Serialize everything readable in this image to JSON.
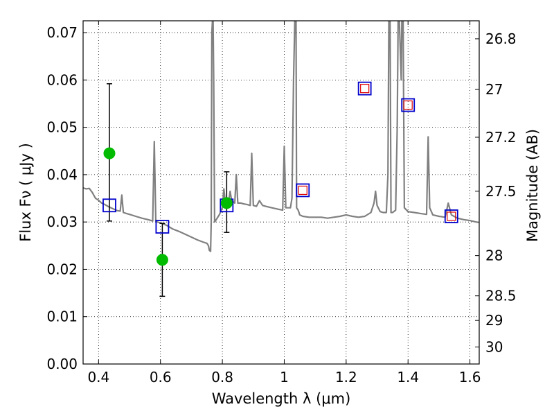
{
  "chart_data": {
    "type": "line",
    "xlabel": "Wavelength  λ (μm)",
    "ylabel": "Flux  Fν  ( μJy )",
    "ylabel_right": "Magnitude (AB)",
    "xlim": [
      0.35,
      1.63
    ],
    "ylim": [
      0.0,
      0.0725
    ],
    "grid": true,
    "grid_style": "dotted",
    "x_ticks": [
      0.4,
      0.6,
      0.8,
      1.0,
      1.2,
      1.4,
      1.6
    ],
    "x_tick_labels": [
      "0.4",
      "0.6",
      "0.8",
      "1",
      "1.2",
      "1.4",
      "1.6"
    ],
    "y_ticks": [
      0.0,
      0.01,
      0.02,
      0.03,
      0.04,
      0.05,
      0.06,
      0.07
    ],
    "y_tick_labels": [
      "0.00",
      "0.01",
      "0.02",
      "0.03",
      "0.04",
      "0.05",
      "0.06",
      "0.07"
    ],
    "y2_ticks": [
      {
        "flux": 0.0687,
        "label": "26.8"
      },
      {
        "flux": 0.058,
        "label": "27"
      },
      {
        "flux": 0.0479,
        "label": "27.2"
      },
      {
        "flux": 0.0365,
        "label": "27.5"
      },
      {
        "flux": 0.0229,
        "label": "28"
      },
      {
        "flux": 0.0144,
        "label": "28.5"
      },
      {
        "flux": 0.0092,
        "label": "29"
      },
      {
        "flux": 0.0036,
        "label": "30"
      }
    ],
    "series": [
      {
        "kind": "spectrum",
        "color": "#808080",
        "points": [
          [
            0.35,
            0.0372
          ],
          [
            0.36,
            0.037
          ],
          [
            0.37,
            0.0371
          ],
          [
            0.38,
            0.0362
          ],
          [
            0.39,
            0.035
          ],
          [
            0.4,
            0.0346
          ],
          [
            0.41,
            0.034
          ],
          [
            0.42,
            0.0337
          ],
          [
            0.43,
            0.0333
          ],
          [
            0.44,
            0.033
          ],
          [
            0.45,
            0.0327
          ],
          [
            0.46,
            0.0324
          ],
          [
            0.47,
            0.0323
          ],
          [
            0.475,
            0.0357
          ],
          [
            0.48,
            0.032
          ],
          [
            0.49,
            0.0318
          ],
          [
            0.5,
            0.0316
          ],
          [
            0.52,
            0.0312
          ],
          [
            0.54,
            0.0308
          ],
          [
            0.56,
            0.0305
          ],
          [
            0.57,
            0.0303
          ],
          [
            0.575,
            0.0302
          ],
          [
            0.58,
            0.047
          ],
          [
            0.585,
            0.0301
          ],
          [
            0.6,
            0.0298
          ],
          [
            0.62,
            0.0293
          ],
          [
            0.64,
            0.0285
          ],
          [
            0.66,
            0.028
          ],
          [
            0.68,
            0.0274
          ],
          [
            0.7,
            0.0268
          ],
          [
            0.72,
            0.0262
          ],
          [
            0.74,
            0.0257
          ],
          [
            0.75,
            0.0255
          ],
          [
            0.755,
            0.025
          ],
          [
            0.758,
            0.024
          ],
          [
            0.762,
            0.0238
          ],
          [
            0.764,
            0.03
          ],
          [
            0.766,
            0.07
          ],
          [
            0.768,
            0.0725
          ],
          [
            0.77,
            0.0725
          ],
          [
            0.772,
            0.06
          ],
          [
            0.775,
            0.03
          ],
          [
            0.78,
            0.0305
          ],
          [
            0.79,
            0.0315
          ],
          [
            0.8,
            0.033
          ],
          [
            0.805,
            0.037
          ],
          [
            0.808,
            0.035
          ],
          [
            0.81,
            0.0345
          ],
          [
            0.82,
            0.034
          ],
          [
            0.825,
            0.0365
          ],
          [
            0.83,
            0.0345
          ],
          [
            0.84,
            0.034
          ],
          [
            0.845,
            0.04
          ],
          [
            0.85,
            0.034
          ],
          [
            0.86,
            0.034
          ],
          [
            0.87,
            0.0338
          ],
          [
            0.88,
            0.0337
          ],
          [
            0.89,
            0.0335
          ],
          [
            0.895,
            0.0445
          ],
          [
            0.9,
            0.0335
          ],
          [
            0.91,
            0.0333
          ],
          [
            0.92,
            0.0345
          ],
          [
            0.93,
            0.0335
          ],
          [
            0.94,
            0.0333
          ],
          [
            0.96,
            0.033
          ],
          [
            0.98,
            0.0327
          ],
          [
            0.995,
            0.0325
          ],
          [
            1.0,
            0.046
          ],
          [
            1.005,
            0.033
          ],
          [
            1.02,
            0.033
          ],
          [
            1.025,
            0.035
          ],
          [
            1.03,
            0.06
          ],
          [
            1.034,
            0.0725
          ],
          [
            1.038,
            0.0725
          ],
          [
            1.04,
            0.033
          ],
          [
            1.045,
            0.0325
          ],
          [
            1.05,
            0.0315
          ],
          [
            1.06,
            0.0312
          ],
          [
            1.08,
            0.031
          ],
          [
            1.1,
            0.031
          ],
          [
            1.12,
            0.031
          ],
          [
            1.14,
            0.0308
          ],
          [
            1.16,
            0.031
          ],
          [
            1.18,
            0.0312
          ],
          [
            1.2,
            0.0315
          ],
          [
            1.22,
            0.0312
          ],
          [
            1.24,
            0.031
          ],
          [
            1.26,
            0.0312
          ],
          [
            1.28,
            0.032
          ],
          [
            1.29,
            0.034
          ],
          [
            1.295,
            0.0365
          ],
          [
            1.3,
            0.0335
          ],
          [
            1.31,
            0.0322
          ],
          [
            1.32,
            0.032
          ],
          [
            1.33,
            0.032
          ],
          [
            1.335,
            0.04
          ],
          [
            1.338,
            0.0725
          ],
          [
            1.342,
            0.0725
          ],
          [
            1.345,
            0.032
          ],
          [
            1.35,
            0.032
          ],
          [
            1.36,
            0.0325
          ],
          [
            1.365,
            0.05
          ],
          [
            1.368,
            0.0725
          ],
          [
            1.372,
            0.0725
          ],
          [
            1.378,
            0.06
          ],
          [
            1.38,
            0.0725
          ],
          [
            1.384,
            0.0725
          ],
          [
            1.388,
            0.033
          ],
          [
            1.4,
            0.0322
          ],
          [
            1.42,
            0.032
          ],
          [
            1.44,
            0.0318
          ],
          [
            1.46,
            0.0316
          ],
          [
            1.465,
            0.048
          ],
          [
            1.47,
            0.033
          ],
          [
            1.48,
            0.0315
          ],
          [
            1.5,
            0.0312
          ],
          [
            1.52,
            0.031
          ],
          [
            1.53,
            0.034
          ],
          [
            1.54,
            0.0315
          ],
          [
            1.56,
            0.0308
          ],
          [
            1.58,
            0.0305
          ],
          [
            1.6,
            0.0303
          ],
          [
            1.62,
            0.03
          ],
          [
            1.63,
            0.0299
          ]
        ]
      },
      {
        "kind": "model-photometry",
        "marker": "open-square",
        "color": "#0000cc",
        "points": [
          [
            0.435,
            0.0335
          ],
          [
            0.606,
            0.029
          ],
          [
            0.814,
            0.0335
          ]
        ]
      },
      {
        "kind": "model-photometry-nir",
        "marker": "double-square",
        "color": "#0000cc",
        "inner_color": "#e00000",
        "points": [
          [
            1.06,
            0.0367
          ],
          [
            1.26,
            0.0582
          ],
          [
            1.4,
            0.0547
          ],
          [
            1.54,
            0.0312
          ]
        ]
      },
      {
        "kind": "observed",
        "marker": "filled-circle",
        "color": "#00bb00",
        "points": [
          {
            "x": 0.435,
            "y": 0.0445,
            "ylow": 0.0302,
            "yhigh": 0.0592
          },
          {
            "x": 0.606,
            "y": 0.022,
            "ylow": 0.0143,
            "yhigh": 0.0297
          },
          {
            "x": 0.814,
            "y": 0.034,
            "ylow": 0.0278,
            "yhigh": 0.0406
          }
        ]
      }
    ]
  }
}
